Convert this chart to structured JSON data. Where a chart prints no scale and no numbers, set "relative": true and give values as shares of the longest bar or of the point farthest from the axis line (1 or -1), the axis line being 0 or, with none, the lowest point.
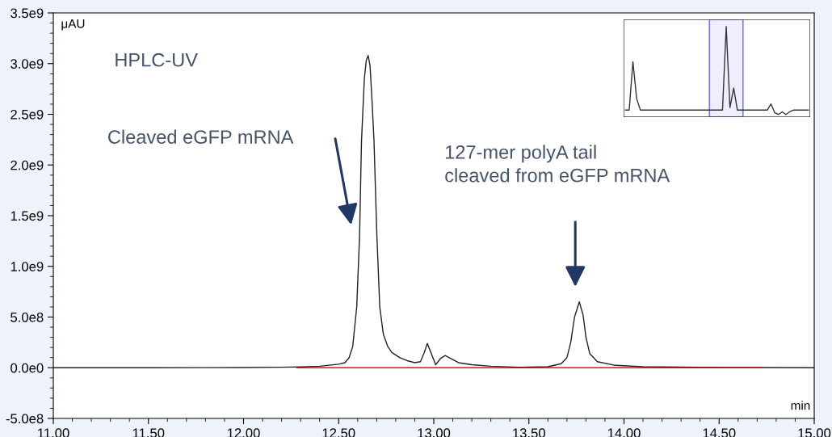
{
  "chart_data": [
    {
      "type": "line",
      "ylabel": "μAU",
      "xlabel": "min",
      "title": "HPLC-UV",
      "xlim": [
        11.0,
        15.0
      ],
      "ylim": [
        -500000000.0,
        3500000000.0
      ],
      "xticks": [
        {
          "value": 11.0,
          "label": "11.00"
        },
        {
          "value": 11.5,
          "label": "11.50"
        },
        {
          "value": 12.0,
          "label": "12.00"
        },
        {
          "value": 12.5,
          "label": "12.50"
        },
        {
          "value": 13.0,
          "label": "13.00"
        },
        {
          "value": 13.5,
          "label": "13.50"
        },
        {
          "value": 14.0,
          "label": "14.00"
        },
        {
          "value": 14.5,
          "label": "14.50"
        },
        {
          "value": 15.0,
          "label": "15.00"
        }
      ],
      "yticks": [
        {
          "value": -500000000.0,
          "label": "-5.0e8"
        },
        {
          "value": 0,
          "label": "0.0e0"
        },
        {
          "value": 500000000.0,
          "label": "5.0e8"
        },
        {
          "value": 1000000000.0,
          "label": "1.0e9"
        },
        {
          "value": 1500000000.0,
          "label": "1.5e9"
        },
        {
          "value": 2000000000.0,
          "label": "2.0e9"
        },
        {
          "value": 2500000000.0,
          "label": "2.5e9"
        },
        {
          "value": 3000000000.0,
          "label": "3.0e9"
        },
        {
          "value": 3500000000.0,
          "label": "3.5e9"
        }
      ],
      "grid": false,
      "series": [
        {
          "color": "#222222",
          "x": [
            11.0,
            11.5,
            12.0,
            12.2,
            12.3,
            12.4,
            12.45,
            12.5,
            12.533,
            12.555,
            12.574,
            12.595,
            12.61,
            12.62,
            12.635,
            12.645,
            12.655,
            12.665,
            12.675,
            12.686,
            12.7,
            12.716,
            12.735,
            12.758,
            12.78,
            12.82,
            12.86,
            12.9,
            12.93,
            12.95,
            12.966,
            12.985,
            13.01,
            13.035,
            13.06,
            13.09,
            13.13,
            13.2,
            13.3,
            13.45,
            13.6,
            13.67,
            13.7,
            13.72,
            13.74,
            13.765,
            13.785,
            13.8,
            13.82,
            13.86,
            13.95,
            14.1,
            14.4,
            14.7,
            15.0
          ],
          "values": [
            0,
            0,
            2000000.0,
            5000000.0,
            8000000.0,
            15000000.0,
            25000000.0,
            35000000.0,
            50000000.0,
            100000000.0,
            210000000.0,
            600000000.0,
            1300000000.0,
            2230000000.0,
            2850000000.0,
            3030000000.0,
            3080000000.0,
            2980000000.0,
            2650000000.0,
            2230000000.0,
            1350000000.0,
            600000000.0,
            330000000.0,
            210000000.0,
            150000000.0,
            100000000.0,
            70000000.0,
            50000000.0,
            60000000.0,
            150000000.0,
            240000000.0,
            150000000.0,
            30000000.0,
            90000000.0,
            120000000.0,
            90000000.0,
            50000000.0,
            30000000.0,
            15000000.0,
            5000000.0,
            10000000.0,
            40000000.0,
            100000000.0,
            250000000.0,
            500000000.0,
            650000000.0,
            520000000.0,
            300000000.0,
            140000000.0,
            60000000.0,
            25000000.0,
            10000000.0,
            5000000.0,
            2000000.0,
            0
          ]
        },
        {
          "color": "#ff0000",
          "x": [
            12.28,
            14.72
          ],
          "values": [
            0,
            0
          ]
        }
      ],
      "annotations": [
        "Cleaved eGFP mRNA",
        "127-mer polyA tail\ncleaved from eGFP mRNA"
      ]
    },
    {
      "type": "line",
      "relative": true,
      "categories": [
        null,
        null,
        null,
        null,
        null,
        null,
        null,
        null,
        null,
        null,
        null,
        null,
        null,
        null,
        null,
        null,
        null,
        null,
        null,
        null,
        null,
        null,
        null,
        null,
        null,
        null,
        null,
        null,
        null,
        null,
        null,
        null,
        null,
        null,
        null,
        null,
        null,
        null,
        null,
        null,
        null,
        null,
        null,
        null,
        null,
        null,
        null,
        null,
        null,
        null
      ],
      "series": [
        {
          "color": "#333333",
          "values": [
            0.05,
            0.05,
            0.6,
            0.18,
            0.05,
            0.05,
            0.05,
            0.05,
            0.05,
            0.05,
            0.05,
            0.05,
            0.05,
            0.05,
            0.05,
            0.05,
            0.05,
            0.05,
            0.05,
            0.05,
            0.05,
            0.05,
            0.05,
            0.05,
            0.05,
            0.05,
            0.05,
            1.0,
            0.08,
            0.3,
            0.05,
            0.05,
            0.05,
            0.05,
            0.05,
            0.05,
            0.05,
            0.05,
            0.05,
            0.12,
            0.02,
            0.0,
            0.03,
            0.0,
            0.03,
            0.05,
            0.05,
            0.05,
            0.05,
            0.05
          ]
        }
      ]
    }
  ]
}
